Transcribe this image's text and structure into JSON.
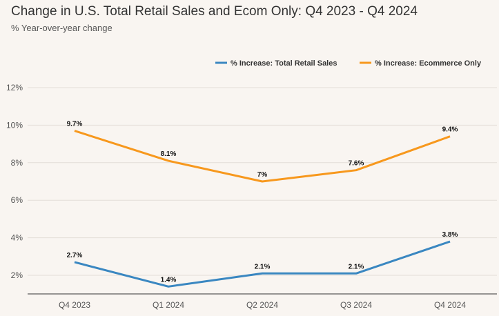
{
  "title": "Change in U.S. Total Retail Sales and Ecom Only: Q4 2023 - Q4 2024",
  "subtitle": "% Year-over-year change",
  "chart_data": {
    "type": "line",
    "categories": [
      "Q4 2023",
      "Q1 2024",
      "Q2 2024",
      "Q3 2024",
      "Q4 2024"
    ],
    "y_ticks": [
      "2%",
      "4%",
      "6%",
      "8%",
      "10%",
      "12%"
    ],
    "ylim": [
      1.0,
      12.0
    ],
    "grid": true,
    "legend_position": "top-right",
    "series": [
      {
        "name": "% Increase: Total Retail Sales",
        "color": "#3a87c1",
        "values": [
          2.7,
          1.4,
          2.1,
          2.1,
          3.8
        ],
        "labels": [
          "2.7%",
          "1.4%",
          "2.1%",
          "2.1%",
          "3.8%"
        ]
      },
      {
        "name": "% Increase: Ecommerce Only",
        "color": "#f7981d",
        "values": [
          9.7,
          8.1,
          7.0,
          7.6,
          9.4
        ],
        "labels": [
          "9.7%",
          "8.1%",
          "7%",
          "7.6%",
          "9.4%"
        ]
      }
    ]
  }
}
